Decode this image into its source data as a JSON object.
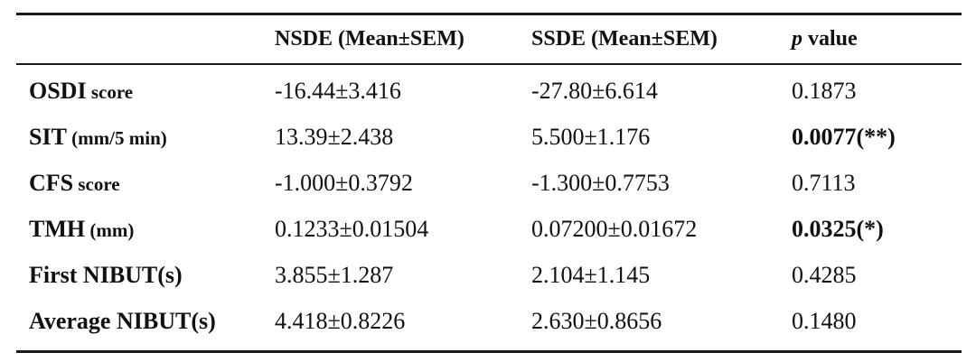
{
  "table": {
    "header": {
      "corner": "",
      "col1": "NSDE (Mean±SEM)",
      "col2": "SSDE (Mean±SEM)",
      "col3_italic": "p",
      "col3_rest": " value"
    },
    "rows": [
      {
        "label_main": "OSDI",
        "label_unit": " score",
        "nsde": "-16.44±3.416",
        "ssde": "-27.80±6.614",
        "p": "0.1873",
        "significant": false
      },
      {
        "label_main": "SIT",
        "label_unit": " (mm/5 min)",
        "nsde": "13.39±2.438",
        "ssde": "5.500±1.176",
        "p": "0.0077(**)",
        "significant": true
      },
      {
        "label_main": "CFS",
        "label_unit": " score",
        "nsde": "-1.000±0.3792",
        "ssde": "-1.300±0.7753",
        "p": "0.7113",
        "significant": false
      },
      {
        "label_main": "TMH",
        "label_unit": " (mm)",
        "nsde": "0.1233±0.01504",
        "ssde": "0.07200±0.01672",
        "p": "0.0325(*)",
        "significant": true
      },
      {
        "label_main": "First NIBUT(s)",
        "label_unit": "",
        "nsde": "3.855±1.287",
        "ssde": "2.104±1.145",
        "p": "0.4285",
        "significant": false
      },
      {
        "label_main": "Average NIBUT(s)",
        "label_unit": "",
        "nsde": "4.418±0.8226",
        "ssde": "2.630±0.8656",
        "p": "0.1480",
        "significant": false
      }
    ]
  }
}
